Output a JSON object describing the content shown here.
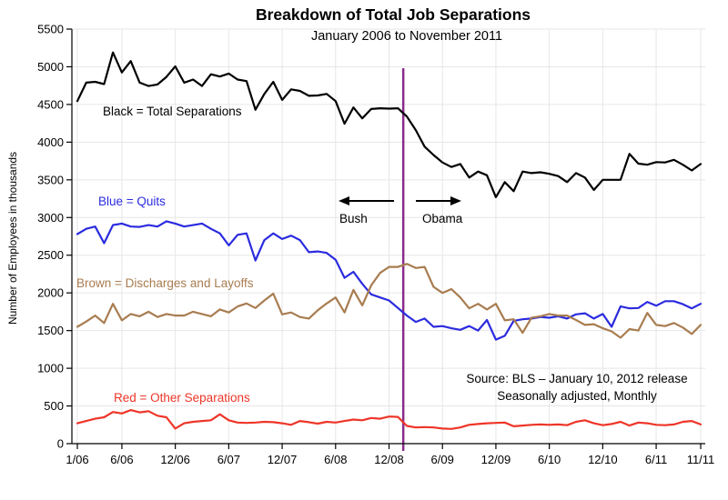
{
  "annotations": {
    "black_label": "Black = Total Separations",
    "blue_label": "Blue = Quits",
    "brown_label": "Brown = Discharges and Layoffs",
    "red_label": "Red = Other Separations",
    "bush": "Bush",
    "obama": "Obama",
    "source_line1": "Source:  BLS – January 10, 2012 release",
    "source_line2": "Seasonally adjusted, Monthly"
  },
  "colors": {
    "black": "#000000",
    "blue": "#2b2bdf",
    "brown": "#a87c50",
    "red": "#ee3528",
    "divider": "#8b2b8b",
    "grid": "#e6e6e6",
    "background": "#ffffff"
  },
  "chart_data": {
    "type": "line",
    "title": "Breakdown of Total Job Separations",
    "subtitle": "January 2006 to November 2011",
    "ylabel": "Number of Employees in thousands",
    "xlabel": "",
    "ylim": [
      0,
      5500
    ],
    "grid": true,
    "legend_position": "inline-annotations",
    "y_ticks": [
      0,
      500,
      1000,
      1500,
      2000,
      2500,
      3000,
      3500,
      4000,
      4500,
      5000,
      5500
    ],
    "x_ticks": [
      {
        "label": "1/06",
        "month": 0
      },
      {
        "label": "6/06",
        "month": 5
      },
      {
        "label": "12/06",
        "month": 11
      },
      {
        "label": "6/07",
        "month": 17
      },
      {
        "label": "12/07",
        "month": 23
      },
      {
        "label": "6/08",
        "month": 29
      },
      {
        "label": "12/08",
        "month": 35
      },
      {
        "label": "6/09",
        "month": 41
      },
      {
        "label": "12/09",
        "month": 47
      },
      {
        "label": "6/10",
        "month": 53
      },
      {
        "label": "12/10",
        "month": 59
      },
      {
        "label": "6/11",
        "month": 65
      },
      {
        "label": "11/11",
        "month": 70
      }
    ],
    "divider": {
      "month_position": 36.6,
      "color_key": "divider"
    },
    "series": [
      {
        "name": "Total Separations",
        "color_key": "black",
        "values": [
          4545,
          4790,
          4800,
          4770,
          5190,
          4925,
          5075,
          4790,
          4745,
          4765,
          4865,
          5005,
          4790,
          4830,
          4745,
          4900,
          4870,
          4910,
          4830,
          4810,
          4430,
          4640,
          4800,
          4560,
          4700,
          4680,
          4615,
          4620,
          4640,
          4545,
          4245,
          4460,
          4315,
          4440,
          4450,
          4445,
          4450,
          4340,
          4160,
          3940,
          3830,
          3730,
          3670,
          3710,
          3530,
          3610,
          3560,
          3270,
          3470,
          3350,
          3610,
          3590,
          3600,
          3580,
          3550,
          3470,
          3590,
          3530,
          3365,
          3500,
          3500,
          3500,
          3845,
          3715,
          3700,
          3735,
          3730,
          3765,
          3700,
          3625,
          3710
        ]
      },
      {
        "name": "Quits",
        "color_key": "blue",
        "values": [
          2780,
          2850,
          2880,
          2660,
          2900,
          2920,
          2880,
          2875,
          2900,
          2880,
          2950,
          2920,
          2880,
          2900,
          2920,
          2850,
          2790,
          2630,
          2770,
          2790,
          2430,
          2700,
          2790,
          2715,
          2760,
          2700,
          2540,
          2550,
          2530,
          2440,
          2200,
          2280,
          2120,
          1980,
          1940,
          1900,
          1800,
          1700,
          1615,
          1660,
          1550,
          1560,
          1530,
          1510,
          1560,
          1500,
          1640,
          1380,
          1430,
          1630,
          1650,
          1660,
          1680,
          1670,
          1690,
          1660,
          1715,
          1730,
          1660,
          1720,
          1550,
          1820,
          1795,
          1800,
          1880,
          1830,
          1890,
          1890,
          1850,
          1795,
          1855
        ]
      },
      {
        "name": "Discharges and Layoffs",
        "color_key": "brown",
        "values": [
          1550,
          1620,
          1700,
          1600,
          1855,
          1635,
          1720,
          1690,
          1750,
          1680,
          1720,
          1700,
          1700,
          1750,
          1720,
          1690,
          1780,
          1740,
          1820,
          1860,
          1800,
          1900,
          1990,
          1715,
          1740,
          1680,
          1660,
          1770,
          1860,
          1940,
          1740,
          2040,
          1835,
          2100,
          2265,
          2345,
          2345,
          2385,
          2330,
          2345,
          2080,
          2000,
          2050,
          1940,
          1795,
          1855,
          1780,
          1855,
          1635,
          1650,
          1470,
          1670,
          1690,
          1720,
          1700,
          1700,
          1640,
          1575,
          1585,
          1530,
          1490,
          1405,
          1520,
          1500,
          1735,
          1575,
          1560,
          1600,
          1540,
          1455,
          1575
        ]
      },
      {
        "name": "Other Separations",
        "color_key": "red",
        "values": [
          270,
          300,
          330,
          350,
          420,
          400,
          445,
          415,
          430,
          370,
          350,
          200,
          270,
          290,
          300,
          310,
          390,
          310,
          280,
          275,
          280,
          290,
          285,
          270,
          250,
          300,
          285,
          265,
          290,
          280,
          300,
          320,
          310,
          340,
          330,
          360,
          355,
          235,
          215,
          220,
          215,
          200,
          195,
          215,
          250,
          260,
          270,
          275,
          280,
          230,
          240,
          250,
          255,
          250,
          255,
          245,
          290,
          310,
          270,
          245,
          260,
          290,
          240,
          280,
          270,
          250,
          245,
          255,
          290,
          300,
          255
        ]
      }
    ]
  }
}
